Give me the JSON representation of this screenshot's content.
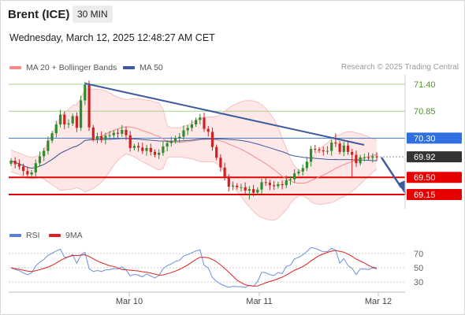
{
  "header": {
    "instrument": "Brent (ICE)",
    "timeframe": "30 MIN",
    "datetime": "Wednesday, March 12, 2025 12:48:27 AM CET"
  },
  "legend_main": [
    {
      "label": "MA 20 + Bollinger Bands",
      "color": "#f28b8b"
    },
    {
      "label": "MA 50",
      "color": "#3d5a9c"
    }
  ],
  "credit": "Research © 2025 Trading Central",
  "legend_rsi": [
    {
      "label": "RSI",
      "color": "#5b7fd4"
    },
    {
      "label": "9MA",
      "color": "#e02020"
    }
  ],
  "colors": {
    "up_candle": "#2e8b2e",
    "down_candle": "#cc2222",
    "resistance": "#a8d08d",
    "pivot": "#4a7fd4",
    "support": "#e00000",
    "trendline": "#3d5a9c",
    "current": "#333333"
  },
  "chart_data": {
    "type": "candlestick",
    "x_ticks": [
      "Mar 10",
      "Mar 11",
      "Mar 12"
    ],
    "price_axis": {
      "min": 68.9,
      "max": 71.5
    },
    "levels": [
      {
        "value": "71.40",
        "kind": "resistance"
      },
      {
        "value": "70.85",
        "kind": "resistance"
      },
      {
        "value": "70.30",
        "kind": "pivot"
      },
      {
        "value": "69.92",
        "kind": "current"
      },
      {
        "value": "69.50",
        "kind": "support"
      },
      {
        "value": "69.15",
        "kind": "support"
      }
    ],
    "rsi_ticks": [
      "70",
      "50",
      "30"
    ],
    "close_series": [
      69.84,
      69.77,
      69.72,
      69.63,
      69.56,
      69.6,
      69.79,
      69.93,
      70.04,
      70.25,
      70.4,
      70.58,
      70.78,
      70.58,
      70.6,
      70.75,
      70.51,
      71.07,
      71.39,
      70.52,
      70.28,
      70.34,
      70.27,
      70.35,
      70.36,
      70.41,
      70.39,
      70.47,
      70.36,
      70.1,
      70.14,
      70.11,
      70.04,
      70.1,
      70.02,
      69.96,
      70.0,
      70.13,
      70.2,
      70.24,
      70.3,
      70.33,
      70.46,
      70.51,
      70.58,
      70.67,
      70.72,
      70.49,
      70.43,
      70.12,
      69.9,
      69.7,
      69.5,
      69.31,
      69.33,
      69.3,
      69.3,
      69.23,
      69.26,
      69.19,
      69.25,
      69.4,
      69.39,
      69.34,
      69.32,
      69.36,
      69.34,
      69.44,
      69.46,
      69.58,
      69.62,
      69.69,
      69.82,
      70.08,
      70.07,
      70.05,
      70.03,
      70.04,
      70.21,
      70.19,
      70.02,
      70.15,
      70.02,
      69.96,
      69.79,
      69.91,
      69.91,
      69.9,
      69.93,
      69.91
    ]
  }
}
